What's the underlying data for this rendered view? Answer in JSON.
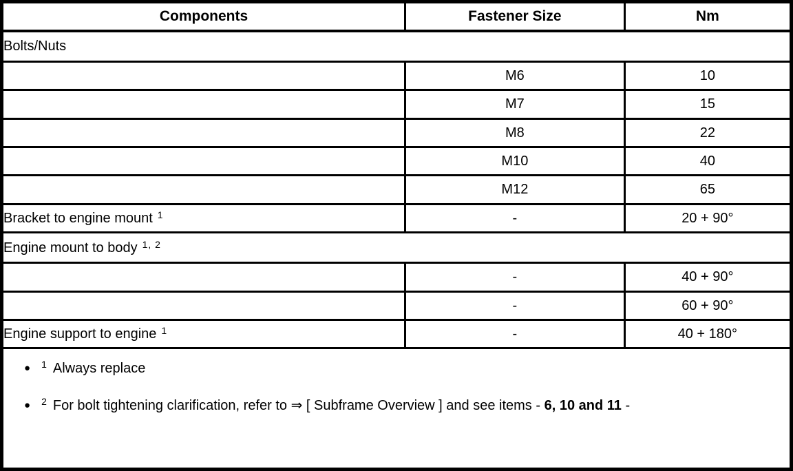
{
  "page": {
    "background": "#ffffff",
    "border_color": "#000000",
    "text_color": "#000000"
  },
  "table": {
    "headers": {
      "components": "Components",
      "fastener_size": "Fastener Size",
      "nm": "Nm"
    },
    "rows": [
      {
        "type": "section",
        "label": "Bolts/Nuts",
        "sup": ""
      },
      {
        "type": "data",
        "component": "",
        "fastener": "M6",
        "nm": "10"
      },
      {
        "type": "data",
        "component": "",
        "fastener": "M7",
        "nm": "15"
      },
      {
        "type": "data",
        "component": "",
        "fastener": "M8",
        "nm": "22"
      },
      {
        "type": "data",
        "component": "",
        "fastener": "M10",
        "nm": "40"
      },
      {
        "type": "data",
        "component": "",
        "fastener": "M12",
        "nm": "65"
      },
      {
        "type": "data",
        "component": "Bracket to engine mount",
        "component_sup": "1",
        "fastener": "-",
        "nm": "20 + 90°"
      },
      {
        "type": "section",
        "label": "Engine mount to body",
        "sup": "1, 2"
      },
      {
        "type": "data",
        "component": "",
        "fastener": "-",
        "nm": "40 + 90°"
      },
      {
        "type": "data",
        "component": "",
        "fastener": "-",
        "nm": "60 + 90°"
      },
      {
        "type": "data",
        "component": "Engine support to engine",
        "component_sup": "1",
        "fastener": "-",
        "nm": "40 + 180°"
      }
    ],
    "footnotes": [
      {
        "bullet": "●",
        "sup": "1",
        "text": "Always replace"
      },
      {
        "bullet": "●",
        "sup": "2",
        "text_pre": "For bolt tightening clarification, refer to ⇒ [ Subframe Overview ] and see items - ",
        "text_bold": "6, 10 and 11",
        "text_post": " -"
      }
    ]
  }
}
